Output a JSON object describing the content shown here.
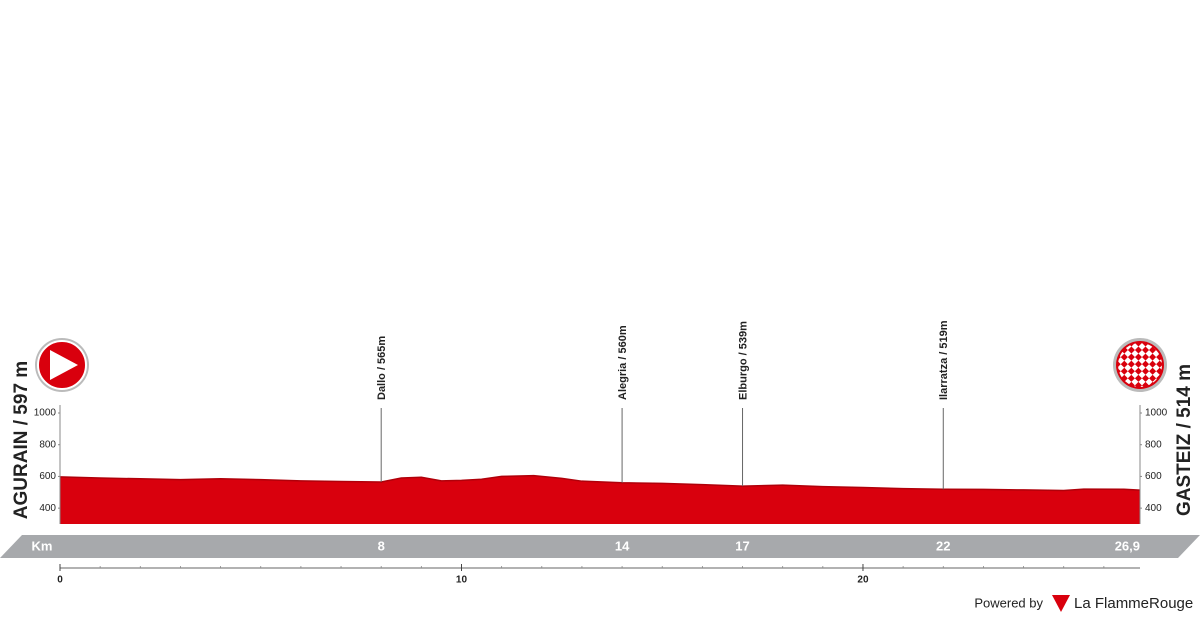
{
  "chart_data": {
    "type": "area",
    "start_label": "AGURAIN / 597 m",
    "finish_label": "GASTEIZ / 514 m",
    "x": [
      0,
      1,
      2,
      3,
      4,
      5,
      6,
      7,
      8,
      8.5,
      9,
      9.5,
      10,
      10.5,
      11,
      11.8,
      12.5,
      13,
      14,
      15,
      16,
      17,
      18,
      19,
      20,
      21,
      22,
      23,
      24,
      25,
      25.5,
      26.5,
      26.9
    ],
    "values": [
      597,
      590,
      585,
      580,
      585,
      580,
      572,
      568,
      565,
      590,
      595,
      572,
      575,
      582,
      600,
      605,
      588,
      570,
      560,
      556,
      548,
      539,
      545,
      536,
      530,
      523,
      519,
      518,
      515,
      511,
      520,
      519,
      514
    ],
    "color": "#d9000d",
    "xlim": [
      0,
      26.9
    ],
    "xticks": [
      0,
      10,
      20
    ],
    "ylim": [
      300,
      1000
    ],
    "yticks": [
      400,
      600,
      800,
      1000
    ],
    "km_title": "Km",
    "km_markers": [
      8,
      14,
      17,
      22,
      {
        "value": 26.9,
        "label": "26,9"
      }
    ],
    "points": [
      {
        "name": "Dallo / 565m",
        "km": 8
      },
      {
        "name": "Alegria / 560m",
        "km": 14
      },
      {
        "name": "Elburgo / 539m",
        "km": 17
      },
      {
        "name": "Ilarratza / 519m",
        "km": 22
      }
    ],
    "credit": "Powered by",
    "brand": "La FlammeRouge"
  }
}
